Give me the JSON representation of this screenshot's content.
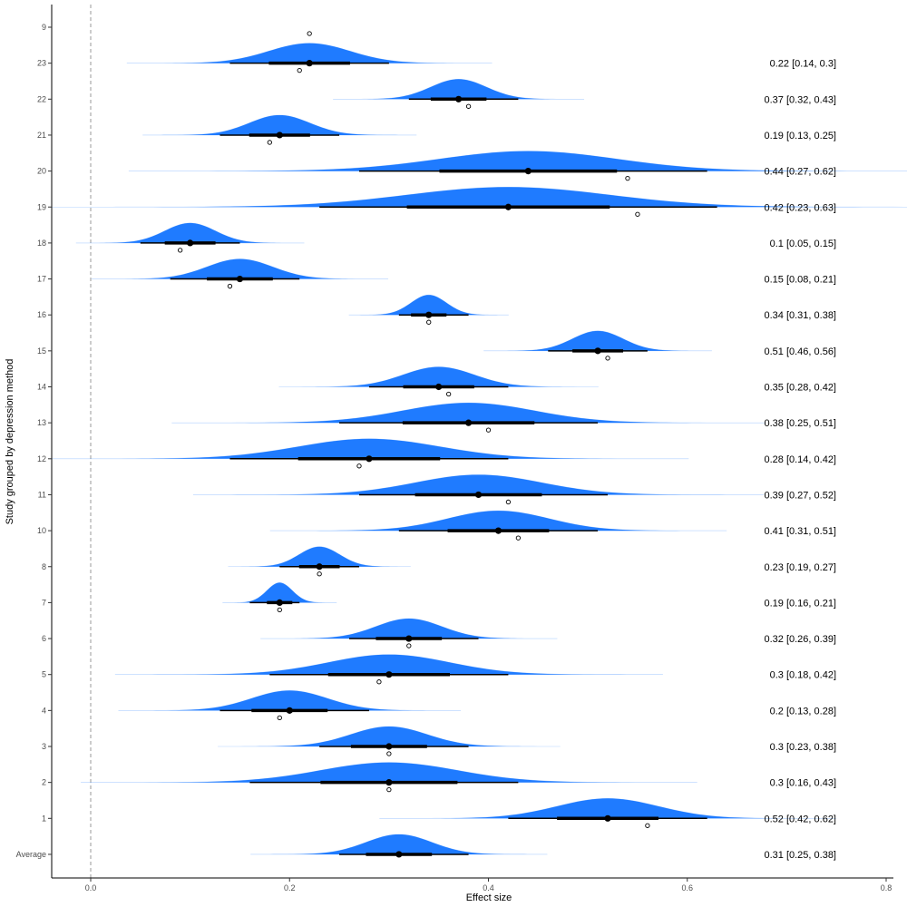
{
  "chart_data": {
    "type": "forest-density",
    "title": "",
    "xlabel": "Effect size",
    "ylabel": "Study grouped by depression method",
    "xlim": [
      -0.05,
      0.82
    ],
    "x_ticks": [
      0.0,
      0.2,
      0.4,
      0.6,
      0.8
    ],
    "x_tick_labels": [
      "0.0",
      "0.2",
      "0.4",
      "0.6",
      "0.8"
    ],
    "reference_line": 0.0,
    "grid": false,
    "colors": {
      "density": "#1F7BFF",
      "interval": "#000000",
      "reference": "#999999"
    },
    "rows": [
      {
        "label": "9",
        "estimate": null,
        "ci_low": null,
        "ci_high": null,
        "observed": 0.22,
        "text": ""
      },
      {
        "label": "23",
        "estimate": 0.22,
        "ci_low": 0.14,
        "ci_high": 0.3,
        "observed": 0.21,
        "text": "0.22 [0.14, 0.3]"
      },
      {
        "label": "22",
        "estimate": 0.37,
        "ci_low": 0.32,
        "ci_high": 0.43,
        "observed": 0.38,
        "text": "0.37 [0.32, 0.43]"
      },
      {
        "label": "21",
        "estimate": 0.19,
        "ci_low": 0.13,
        "ci_high": 0.25,
        "observed": 0.18,
        "text": "0.19 [0.13, 0.25]"
      },
      {
        "label": "20",
        "estimate": 0.44,
        "ci_low": 0.27,
        "ci_high": 0.62,
        "observed": 0.54,
        "text": "0.44 [0.27, 0.62]"
      },
      {
        "label": "19",
        "estimate": 0.42,
        "ci_low": 0.23,
        "ci_high": 0.63,
        "observed": 0.55,
        "text": "0.42 [0.23, 0.63]"
      },
      {
        "label": "18",
        "estimate": 0.1,
        "ci_low": 0.05,
        "ci_high": 0.15,
        "observed": 0.09,
        "text": "0.1 [0.05, 0.15]"
      },
      {
        "label": "17",
        "estimate": 0.15,
        "ci_low": 0.08,
        "ci_high": 0.21,
        "observed": 0.14,
        "text": "0.15 [0.08, 0.21]"
      },
      {
        "label": "16",
        "estimate": 0.34,
        "ci_low": 0.31,
        "ci_high": 0.38,
        "observed": 0.34,
        "text": "0.34 [0.31, 0.38]"
      },
      {
        "label": "15",
        "estimate": 0.51,
        "ci_low": 0.46,
        "ci_high": 0.56,
        "observed": 0.52,
        "text": "0.51 [0.46, 0.56]"
      },
      {
        "label": "14",
        "estimate": 0.35,
        "ci_low": 0.28,
        "ci_high": 0.42,
        "observed": 0.36,
        "text": "0.35 [0.28, 0.42]"
      },
      {
        "label": "13",
        "estimate": 0.38,
        "ci_low": 0.25,
        "ci_high": 0.51,
        "observed": 0.4,
        "text": "0.38 [0.25, 0.51]"
      },
      {
        "label": "12",
        "estimate": 0.28,
        "ci_low": 0.14,
        "ci_high": 0.42,
        "observed": 0.27,
        "text": "0.28 [0.14, 0.42]"
      },
      {
        "label": "11",
        "estimate": 0.39,
        "ci_low": 0.27,
        "ci_high": 0.52,
        "observed": 0.42,
        "text": "0.39 [0.27, 0.52]"
      },
      {
        "label": "10",
        "estimate": 0.41,
        "ci_low": 0.31,
        "ci_high": 0.51,
        "observed": 0.43,
        "text": "0.41 [0.31, 0.51]"
      },
      {
        "label": "8",
        "estimate": 0.23,
        "ci_low": 0.19,
        "ci_high": 0.27,
        "observed": 0.23,
        "text": "0.23 [0.19, 0.27]"
      },
      {
        "label": "7",
        "estimate": 0.19,
        "ci_low": 0.16,
        "ci_high": 0.21,
        "observed": 0.19,
        "text": "0.19 [0.16, 0.21]"
      },
      {
        "label": "6",
        "estimate": 0.32,
        "ci_low": 0.26,
        "ci_high": 0.39,
        "observed": 0.32,
        "text": "0.32 [0.26, 0.39]"
      },
      {
        "label": "5",
        "estimate": 0.3,
        "ci_low": 0.18,
        "ci_high": 0.42,
        "observed": 0.29,
        "text": "0.3 [0.18, 0.42]"
      },
      {
        "label": "4",
        "estimate": 0.2,
        "ci_low": 0.13,
        "ci_high": 0.28,
        "observed": 0.19,
        "text": "0.2 [0.13, 0.28]"
      },
      {
        "label": "3",
        "estimate": 0.3,
        "ci_low": 0.23,
        "ci_high": 0.38,
        "observed": 0.3,
        "text": "0.3 [0.23, 0.38]"
      },
      {
        "label": "2",
        "estimate": 0.3,
        "ci_low": 0.16,
        "ci_high": 0.43,
        "observed": 0.3,
        "text": "0.3 [0.16, 0.43]"
      },
      {
        "label": "1",
        "estimate": 0.52,
        "ci_low": 0.42,
        "ci_high": 0.62,
        "observed": 0.56,
        "text": "0.52 [0.42, 0.62]"
      },
      {
        "label": "Average",
        "estimate": 0.31,
        "ci_low": 0.25,
        "ci_high": 0.38,
        "observed": null,
        "text": "0.31 [0.25, 0.38]"
      }
    ]
  }
}
